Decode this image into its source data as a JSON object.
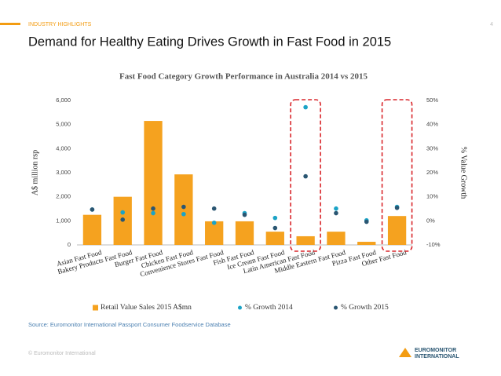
{
  "header": {
    "section": "INDUSTRY HIGHLIGHTS",
    "page": "4",
    "title": "Demand for Healthy Eating Drives Growth in Fast Food in 2015"
  },
  "source": "Source: Euromonitor International Passport Consumer Foodservice Database",
  "footer": {
    "copyright": "© Euromonitor International",
    "logo": [
      "EUROMONITOR",
      "INTERNATIONAL"
    ]
  },
  "chart_data": {
    "type": "bar",
    "title": "Fast Food Category Growth Performance in Australia 2014 vs 2015",
    "ylabel": "A$ million rsp",
    "y2label": "% Value Growth",
    "categories": [
      "Asian Fast Food",
      "Bakery Products Fast Food",
      "Burger Fast Food",
      "Chicken Fast Food",
      "Convenience Stores Fast Food",
      "Fish Fast Food",
      "Ice Cream Fast Food",
      "Latin American Fast Food",
      "Middle Eastern Fast Food",
      "Pizza Fast Food",
      "Other Fast Food"
    ],
    "series": [
      {
        "name": "Retail Value Sales 2015 A$mn",
        "type": "bar",
        "color": "#f5a21f",
        "values": [
          1250,
          2000,
          5150,
          2930,
          980,
          980,
          550,
          360,
          550,
          130,
          1200
        ]
      },
      {
        "name": "% Growth 2014",
        "type": "scatter",
        "axis": "y2",
        "color": "#1ba3c6",
        "values": [
          4.7,
          3.5,
          3.2,
          2.8,
          -0.8,
          3.2,
          1.2,
          47.2,
          5.1,
          0.2,
          5.8
        ]
      },
      {
        "name": "% Growth 2015",
        "type": "scatter",
        "axis": "y2",
        "color": "#2a5672",
        "values": [
          4.7,
          0.5,
          5.1,
          5.8,
          5.1,
          2.5,
          -3,
          18.5,
          3.2,
          -0.4,
          5.4
        ]
      }
    ],
    "ylim": [
      0,
      6000
    ],
    "yticks": [
      0,
      {
        "value": 1000,
        "label": "1,000"
      },
      {
        "value": 2000,
        "label": "2,000"
      },
      {
        "value": 3000,
        "label": "3,000"
      },
      {
        "value": 4000,
        "label": "4,000"
      },
      {
        "value": 5000,
        "label": "5,000"
      },
      {
        "value": 6000,
        "label": "6,000"
      }
    ],
    "y2lim": [
      -10,
      50
    ],
    "y2ticks": [
      {
        "value": -10,
        "label": "-10%"
      },
      {
        "value": 0,
        "label": "0%"
      },
      {
        "value": 10,
        "label": "10%"
      },
      {
        "value": 20,
        "label": "20%"
      },
      {
        "value": 30,
        "label": "30%"
      },
      {
        "value": 40,
        "label": "40%"
      },
      {
        "value": 50,
        "label": "50%"
      }
    ],
    "grid": false,
    "legend": "bottom"
  }
}
